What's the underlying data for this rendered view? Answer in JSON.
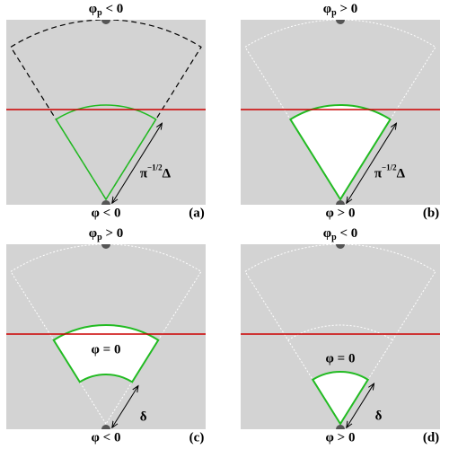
{
  "panels": [
    {
      "top_label": {
        "base": "φ",
        "sub": "p",
        "rest": " < 0"
      },
      "bottom_label": "φ < 0",
      "tag": "(a)",
      "length_label": {
        "base": "π",
        "sup": "−1/2",
        "rest": "Δ"
      }
    },
    {
      "top_label": {
        "base": "φ",
        "sub": "p",
        "rest": " > 0"
      },
      "bottom_label": "φ > 0",
      "tag": "(b)",
      "length_label": {
        "base": "π",
        "sup": "−1/2",
        "rest": "Δ"
      }
    },
    {
      "top_label": {
        "base": "φ",
        "sub": "p",
        "rest": " > 0"
      },
      "bottom_label": "φ < 0",
      "tag": "(c)",
      "length_label": {
        "base": "δ"
      },
      "region_label": "φ = 0"
    },
    {
      "top_label": {
        "base": "φ",
        "sub": "p",
        "rest": " < 0"
      },
      "bottom_label": "φ > 0",
      "tag": "(d)",
      "length_label": {
        "base": "δ"
      },
      "region_label": "φ = 0"
    }
  ]
}
